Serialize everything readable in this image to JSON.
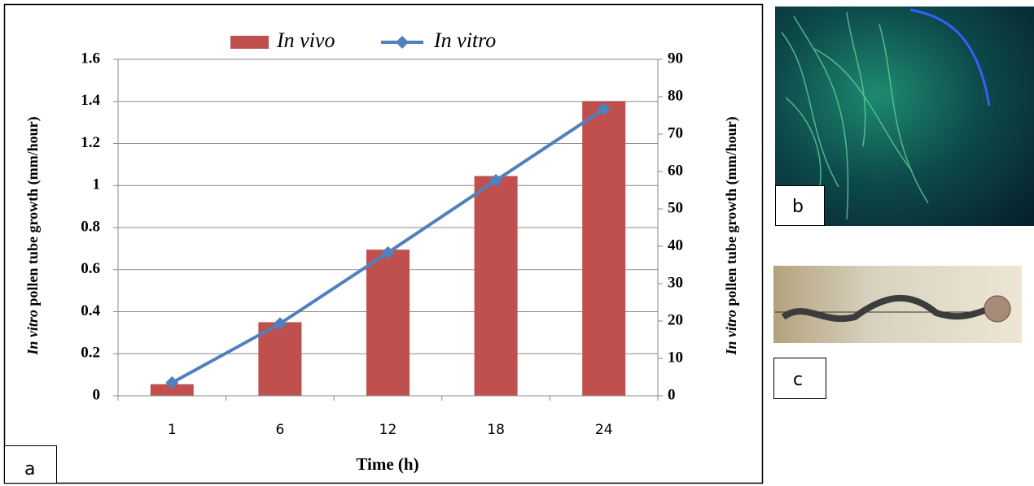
{
  "chart_data": {
    "type": "bar-line",
    "categories": [
      "1",
      "6",
      "12",
      "18",
      "24"
    ],
    "series": [
      {
        "name": "In vivo",
        "type": "bar",
        "color": "#c0504d",
        "values": [
          0.055,
          0.35,
          0.695,
          1.045,
          1.4
        ]
      },
      {
        "name": "In vitro",
        "type": "line",
        "color": "#4f81bd",
        "axis": "y2",
        "values": [
          3.5,
          19.3,
          38.3,
          57.6,
          76.7
        ]
      }
    ],
    "x_label": "Time (h)",
    "y_label": {
      "italic": "In vitro",
      "rest": "pollen tube growth (mm/hour)"
    },
    "y2_label": {
      "italic": "In vitro",
      "rest": "pollen tube growth (mm/hour)"
    },
    "ylim": [
      0,
      1.6
    ],
    "yticks": [
      0,
      0.2,
      0.4,
      0.6,
      0.8,
      1,
      1.2,
      1.4,
      1.6
    ],
    "y2lim": [
      0,
      90
    ],
    "y2ticks": [
      0,
      10,
      20,
      30,
      40,
      50,
      60,
      70,
      80,
      90
    ],
    "grid": true,
    "legend": "top"
  },
  "panels": [
    "a",
    "b",
    "c"
  ]
}
